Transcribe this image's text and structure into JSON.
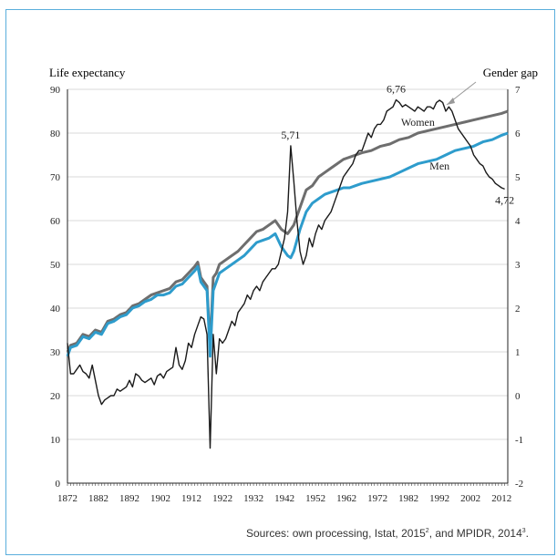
{
  "chart_data": {
    "type": "line",
    "left_axis_label": "Life expectancy",
    "right_axis_label": "Gender gap",
    "ylim_left": [
      0,
      90
    ],
    "ylim_right": [
      -2,
      7
    ],
    "y_ticks_left": [
      "0",
      "10",
      "20",
      "30",
      "40",
      "50",
      "60",
      "70",
      "80",
      "90"
    ],
    "y_ticks_right": [
      "-2",
      "-1",
      "0",
      "1",
      "2",
      "3",
      "4",
      "5",
      "6",
      "7"
    ],
    "x_range": [
      1872,
      2014
    ],
    "x_ticks": [
      "1872",
      "1882",
      "1892",
      "1902",
      "1912",
      "1922",
      "1932",
      "1942",
      "1952",
      "1962",
      "1972",
      "1982",
      "1992",
      "2002",
      "2012"
    ],
    "grid": "horizontal",
    "series": [
      {
        "name": "Women",
        "axis": "left",
        "color": "#6e6e6e",
        "points": [
          [
            1872,
            30
          ],
          [
            1873,
            31.5
          ],
          [
            1875,
            32
          ],
          [
            1877,
            34
          ],
          [
            1879,
            33.5
          ],
          [
            1881,
            35
          ],
          [
            1883,
            34.5
          ],
          [
            1885,
            37
          ],
          [
            1887,
            37.5
          ],
          [
            1889,
            38.5
          ],
          [
            1891,
            39
          ],
          [
            1893,
            40.5
          ],
          [
            1895,
            41
          ],
          [
            1897,
            42
          ],
          [
            1899,
            43
          ],
          [
            1901,
            43.5
          ],
          [
            1903,
            44
          ],
          [
            1905,
            44.5
          ],
          [
            1907,
            46
          ],
          [
            1909,
            46.5
          ],
          [
            1911,
            48
          ],
          [
            1913,
            49.5
          ],
          [
            1914,
            50.5
          ],
          [
            1915,
            47
          ],
          [
            1916,
            46
          ],
          [
            1917,
            45
          ],
          [
            1918,
            31
          ],
          [
            1919,
            47
          ],
          [
            1920,
            48
          ],
          [
            1921,
            50
          ],
          [
            1923,
            51
          ],
          [
            1925,
            52
          ],
          [
            1927,
            53
          ],
          [
            1929,
            54.5
          ],
          [
            1931,
            56
          ],
          [
            1933,
            57.5
          ],
          [
            1935,
            58
          ],
          [
            1937,
            59
          ],
          [
            1939,
            60
          ],
          [
            1941,
            58
          ],
          [
            1943,
            57
          ],
          [
            1945,
            59
          ],
          [
            1947,
            63
          ],
          [
            1949,
            67
          ],
          [
            1951,
            68
          ],
          [
            1953,
            70
          ],
          [
            1955,
            71
          ],
          [
            1957,
            72
          ],
          [
            1959,
            73
          ],
          [
            1961,
            74
          ],
          [
            1963,
            74.5
          ],
          [
            1965,
            75
          ],
          [
            1967,
            75.5
          ],
          [
            1970,
            76
          ],
          [
            1973,
            77
          ],
          [
            1976,
            77.5
          ],
          [
            1979,
            78.5
          ],
          [
            1982,
            79
          ],
          [
            1985,
            80
          ],
          [
            1988,
            80.5
          ],
          [
            1991,
            81
          ],
          [
            1994,
            81.5
          ],
          [
            1997,
            82
          ],
          [
            2000,
            82.5
          ],
          [
            2003,
            83
          ],
          [
            2006,
            83.5
          ],
          [
            2009,
            84
          ],
          [
            2012,
            84.5
          ],
          [
            2014,
            85
          ]
        ]
      },
      {
        "name": "Men",
        "axis": "left",
        "color": "#2e9ccc",
        "points": [
          [
            1872,
            29
          ],
          [
            1873,
            31
          ],
          [
            1875,
            31.5
          ],
          [
            1877,
            33.5
          ],
          [
            1879,
            33
          ],
          [
            1881,
            34.5
          ],
          [
            1883,
            34
          ],
          [
            1885,
            36.5
          ],
          [
            1887,
            37
          ],
          [
            1889,
            38
          ],
          [
            1891,
            38.5
          ],
          [
            1893,
            40
          ],
          [
            1895,
            40.5
          ],
          [
            1897,
            41.5
          ],
          [
            1899,
            42
          ],
          [
            1901,
            43
          ],
          [
            1903,
            43
          ],
          [
            1905,
            43.5
          ],
          [
            1907,
            45
          ],
          [
            1909,
            45.5
          ],
          [
            1911,
            47
          ],
          [
            1913,
            48.5
          ],
          [
            1914,
            49.5
          ],
          [
            1915,
            46
          ],
          [
            1916,
            45
          ],
          [
            1917,
            44
          ],
          [
            1918,
            29
          ],
          [
            1919,
            44
          ],
          [
            1920,
            46
          ],
          [
            1921,
            48
          ],
          [
            1923,
            49
          ],
          [
            1925,
            50
          ],
          [
            1927,
            51
          ],
          [
            1929,
            52
          ],
          [
            1931,
            53.5
          ],
          [
            1933,
            55
          ],
          [
            1935,
            55.5
          ],
          [
            1937,
            56
          ],
          [
            1939,
            57
          ],
          [
            1941,
            54
          ],
          [
            1943,
            52
          ],
          [
            1944,
            51.5
          ],
          [
            1945,
            53
          ],
          [
            1947,
            58
          ],
          [
            1949,
            62
          ],
          [
            1951,
            64
          ],
          [
            1953,
            65
          ],
          [
            1955,
            66
          ],
          [
            1957,
            66.5
          ],
          [
            1959,
            67
          ],
          [
            1961,
            67.5
          ],
          [
            1963,
            67.5
          ],
          [
            1965,
            68
          ],
          [
            1967,
            68.5
          ],
          [
            1970,
            69
          ],
          [
            1973,
            69.5
          ],
          [
            1976,
            70
          ],
          [
            1979,
            71
          ],
          [
            1982,
            72
          ],
          [
            1985,
            73
          ],
          [
            1988,
            73.5
          ],
          [
            1991,
            74
          ],
          [
            1994,
            75
          ],
          [
            1997,
            76
          ],
          [
            2000,
            76.5
          ],
          [
            2003,
            77
          ],
          [
            2006,
            78
          ],
          [
            2009,
            78.5
          ],
          [
            2012,
            79.5
          ],
          [
            2014,
            80
          ]
        ]
      },
      {
        "name": "Gender gap",
        "axis": "right",
        "color": "#1a1a1a",
        "points": [
          [
            1872,
            1.2
          ],
          [
            1873,
            0.5
          ],
          [
            1874,
            0.5
          ],
          [
            1875,
            0.6
          ],
          [
            1876,
            0.7
          ],
          [
            1877,
            0.55
          ],
          [
            1878,
            0.5
          ],
          [
            1879,
            0.4
          ],
          [
            1880,
            0.7
          ],
          [
            1881,
            0.35
          ],
          [
            1882,
            0.0
          ],
          [
            1883,
            -0.2
          ],
          [
            1884,
            -0.1
          ],
          [
            1885,
            -0.05
          ],
          [
            1886,
            0.0
          ],
          [
            1887,
            0.0
          ],
          [
            1888,
            0.15
          ],
          [
            1889,
            0.1
          ],
          [
            1890,
            0.15
          ],
          [
            1891,
            0.2
          ],
          [
            1892,
            0.35
          ],
          [
            1893,
            0.2
          ],
          [
            1894,
            0.5
          ],
          [
            1895,
            0.45
          ],
          [
            1896,
            0.35
          ],
          [
            1897,
            0.3
          ],
          [
            1898,
            0.35
          ],
          [
            1899,
            0.4
          ],
          [
            1900,
            0.25
          ],
          [
            1901,
            0.45
          ],
          [
            1902,
            0.5
          ],
          [
            1903,
            0.4
          ],
          [
            1904,
            0.55
          ],
          [
            1905,
            0.6
          ],
          [
            1906,
            0.65
          ],
          [
            1907,
            1.1
          ],
          [
            1908,
            0.7
          ],
          [
            1909,
            0.6
          ],
          [
            1910,
            0.8
          ],
          [
            1911,
            1.2
          ],
          [
            1912,
            1.1
          ],
          [
            1913,
            1.4
          ],
          [
            1914,
            1.6
          ],
          [
            1915,
            1.8
          ],
          [
            1916,
            1.75
          ],
          [
            1917,
            1.4
          ],
          [
            1918,
            -1.2
          ],
          [
            1919,
            1.4
          ],
          [
            1920,
            0.5
          ],
          [
            1921,
            1.3
          ],
          [
            1922,
            1.2
          ],
          [
            1923,
            1.3
          ],
          [
            1924,
            1.5
          ],
          [
            1925,
            1.7
          ],
          [
            1926,
            1.6
          ],
          [
            1927,
            1.9
          ],
          [
            1928,
            2.0
          ],
          [
            1929,
            2.1
          ],
          [
            1930,
            2.3
          ],
          [
            1931,
            2.2
          ],
          [
            1932,
            2.4
          ],
          [
            1933,
            2.5
          ],
          [
            1934,
            2.4
          ],
          [
            1935,
            2.6
          ],
          [
            1936,
            2.7
          ],
          [
            1937,
            2.8
          ],
          [
            1938,
            2.9
          ],
          [
            1939,
            2.9
          ],
          [
            1940,
            3.0
          ],
          [
            1941,
            3.3
          ],
          [
            1942,
            3.6
          ],
          [
            1943,
            4.2
          ],
          [
            1944,
            5.71
          ],
          [
            1945,
            4.9
          ],
          [
            1946,
            4.0
          ],
          [
            1947,
            3.3
          ],
          [
            1948,
            3.0
          ],
          [
            1949,
            3.2
          ],
          [
            1950,
            3.6
          ],
          [
            1951,
            3.4
          ],
          [
            1952,
            3.7
          ],
          [
            1953,
            3.9
          ],
          [
            1954,
            3.8
          ],
          [
            1955,
            4.0
          ],
          [
            1956,
            4.1
          ],
          [
            1957,
            4.2
          ],
          [
            1958,
            4.4
          ],
          [
            1959,
            4.6
          ],
          [
            1960,
            4.8
          ],
          [
            1961,
            5.0
          ],
          [
            1962,
            5.1
          ],
          [
            1963,
            5.2
          ],
          [
            1964,
            5.3
          ],
          [
            1965,
            5.5
          ],
          [
            1966,
            5.6
          ],
          [
            1967,
            5.6
          ],
          [
            1968,
            5.8
          ],
          [
            1969,
            6.0
          ],
          [
            1970,
            5.9
          ],
          [
            1971,
            6.1
          ],
          [
            1972,
            6.2
          ],
          [
            1973,
            6.2
          ],
          [
            1974,
            6.3
          ],
          [
            1975,
            6.5
          ],
          [
            1976,
            6.55
          ],
          [
            1977,
            6.6
          ],
          [
            1978,
            6.76
          ],
          [
            1979,
            6.7
          ],
          [
            1980,
            6.6
          ],
          [
            1981,
            6.65
          ],
          [
            1982,
            6.6
          ],
          [
            1983,
            6.55
          ],
          [
            1984,
            6.5
          ],
          [
            1985,
            6.6
          ],
          [
            1986,
            6.55
          ],
          [
            1987,
            6.5
          ],
          [
            1988,
            6.6
          ],
          [
            1989,
            6.6
          ],
          [
            1990,
            6.55
          ],
          [
            1991,
            6.7
          ],
          [
            1992,
            6.75
          ],
          [
            1993,
            6.7
          ],
          [
            1994,
            6.5
          ],
          [
            1995,
            6.6
          ],
          [
            1996,
            6.5
          ],
          [
            1997,
            6.3
          ],
          [
            1998,
            6.1
          ],
          [
            1999,
            6.0
          ],
          [
            2000,
            5.9
          ],
          [
            2001,
            5.8
          ],
          [
            2002,
            5.7
          ],
          [
            2003,
            5.5
          ],
          [
            2004,
            5.4
          ],
          [
            2005,
            5.3
          ],
          [
            2006,
            5.25
          ],
          [
            2007,
            5.1
          ],
          [
            2008,
            5.0
          ],
          [
            2009,
            4.95
          ],
          [
            2010,
            4.85
          ],
          [
            2011,
            4.8
          ],
          [
            2012,
            4.75
          ],
          [
            2013,
            4.72
          ]
        ]
      }
    ],
    "annotations": [
      {
        "text": "5,71",
        "x": 1944,
        "y": 5.71
      },
      {
        "text": "6,76",
        "x": 1978,
        "y": 6.76
      },
      {
        "text": "4,72",
        "x": 2013,
        "y": 4.72
      },
      {
        "text": "Women",
        "x": 1985,
        "y": 80
      },
      {
        "text": "Men",
        "x": 1992,
        "y": 70
      }
    ]
  },
  "source_note": {
    "prefix": "Sources: own processing, Istat, 2015",
    "sup1": "2",
    "middle": ", and MPIDR, 2014",
    "sup2": "3",
    "suffix": "."
  }
}
